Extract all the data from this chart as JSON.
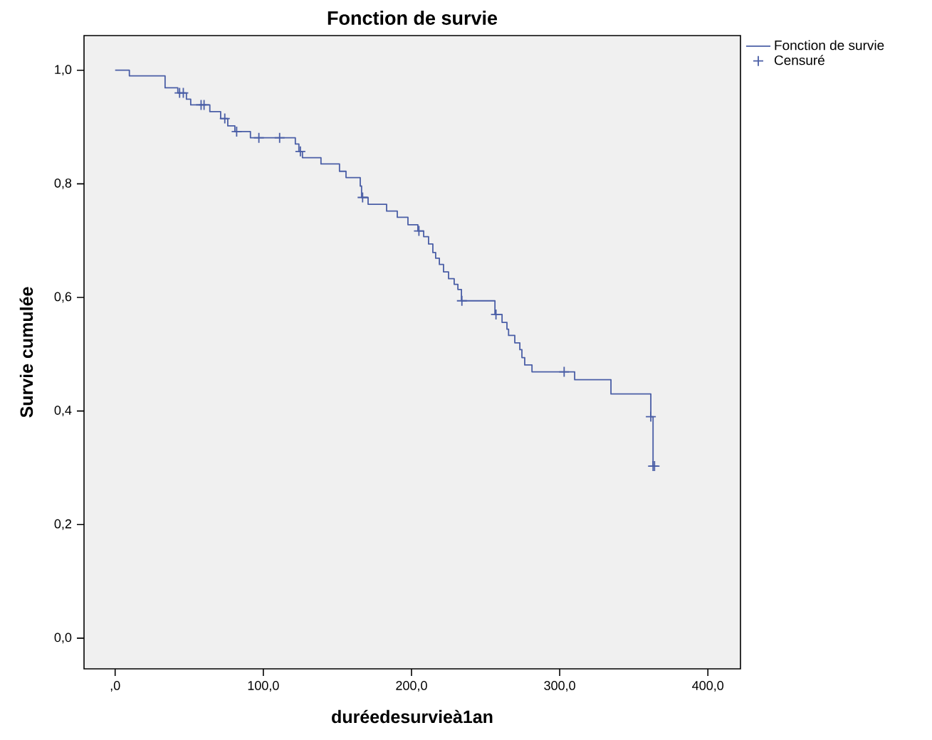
{
  "chart_data": {
    "type": "step",
    "title": "Fonction de survie",
    "xlabel": "duréedesurvieà1an",
    "ylabel": "Survie cumulée",
    "xlim": [
      -21,
      422
    ],
    "ylim": [
      -0.054,
      1.061
    ],
    "xticks": [
      {
        "value": 0,
        "label": ",0"
      },
      {
        "value": 100,
        "label": "100,0"
      },
      {
        "value": 200,
        "label": "200,0"
      },
      {
        "value": 300,
        "label": "300,0"
      },
      {
        "value": 400,
        "label": "400,0"
      }
    ],
    "yticks": [
      {
        "value": 0,
        "label": "0,0"
      },
      {
        "value": 0.2,
        "label": "0,2"
      },
      {
        "value": 0.4,
        "label": "0,4"
      },
      {
        "value": 0.6,
        "label": "0,6"
      },
      {
        "value": 0.8,
        "label": "0,8"
      },
      {
        "value": 1.0,
        "label": "1,0"
      }
    ],
    "legend": "top right",
    "grid": false,
    "series": [
      {
        "name": "Fonction de survie",
        "color": "#4a5ea6",
        "x": [
          0,
          9.6,
          33.7,
          42.3,
          48.1,
          51.0,
          63.9,
          71.2,
          76.0,
          80.8,
          91.3,
          121.6,
          124.0,
          126.4,
          138.9,
          151.4,
          155.8,
          165.4,
          166.3,
          170.7,
          183.2,
          190.4,
          197.6,
          204.3,
          208.2,
          211.5,
          214.4,
          216.3,
          218.8,
          221.6,
          225.0,
          228.8,
          231.3,
          233.7,
          256.3,
          261.1,
          264.4,
          265.5,
          269.7,
          273.1,
          274.5,
          276.4,
          281.3,
          310.1,
          334.6,
          361.5,
          363.0,
          364.5
        ],
        "values": [
          1.0,
          0.99,
          0.969,
          0.96,
          0.949,
          0.939,
          0.927,
          0.915,
          0.902,
          0.892,
          0.881,
          0.87,
          0.857,
          0.846,
          0.835,
          0.822,
          0.811,
          0.796,
          0.776,
          0.764,
          0.752,
          0.741,
          0.728,
          0.717,
          0.707,
          0.694,
          0.679,
          0.669,
          0.658,
          0.645,
          0.633,
          0.623,
          0.614,
          0.594,
          0.57,
          0.556,
          0.544,
          0.533,
          0.52,
          0.508,
          0.494,
          0.481,
          0.469,
          0.455,
          0.43,
          0.39,
          0.303,
          0.303
        ]
      },
      {
        "name": "Censuré",
        "type": "scatter",
        "marker": "cross",
        "color": "#4a5ea6",
        "x": [
          43.5,
          46,
          58,
          60,
          74,
          82,
          97,
          111,
          125,
          167,
          205,
          234,
          257,
          303,
          361.5,
          363,
          364
        ],
        "values": [
          0.96,
          0.96,
          0.939,
          0.939,
          0.915,
          0.892,
          0.881,
          0.881,
          0.857,
          0.776,
          0.717,
          0.594,
          0.57,
          0.469,
          0.39,
          0.303,
          0.303
        ]
      }
    ]
  }
}
